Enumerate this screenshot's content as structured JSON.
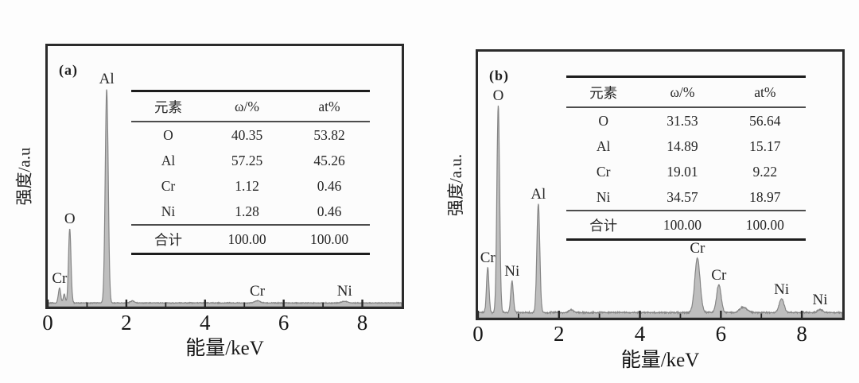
{
  "figure": {
    "panels": [
      {
        "tag": "(a)",
        "xlabel": "能量/keV",
        "ylabel": "强度/a.u",
        "xtick_labels": [
          "0",
          "2",
          "4",
          "6",
          "8"
        ],
        "table": {
          "columns": [
            "元素",
            "ω/%",
            "at%"
          ],
          "rows": [
            [
              "O",
              "40.35",
              "53.82"
            ],
            [
              "Al",
              "57.25",
              "45.26"
            ],
            [
              "Cr",
              "1.12",
              "0.46"
            ],
            [
              "Ni",
              "1.28",
              "0.46"
            ],
            [
              "合计",
              "100.00",
              "100.00"
            ]
          ]
        }
      },
      {
        "tag": "(b)",
        "xlabel": "能量/keV",
        "ylabel": "强度/a.u.",
        "xtick_labels": [
          "0",
          "2",
          "4",
          "6",
          "8"
        ],
        "table": {
          "columns": [
            "元素",
            "ω/%",
            "at%"
          ],
          "rows": [
            [
              "O",
              "31.53",
              "56.64"
            ],
            [
              "Al",
              "14.89",
              "15.17"
            ],
            [
              "Cr",
              "19.01",
              "9.22"
            ],
            [
              "Ni",
              "34.57",
              "18.97"
            ],
            [
              "合计",
              "100.00",
              "100.00"
            ]
          ]
        }
      }
    ]
  },
  "colors": {
    "peak_fill": "#b9b9b9",
    "peak_stroke": "#858585",
    "frame": "#2b2b2b",
    "text": "#1e1e1e"
  },
  "chart_data": [
    {
      "type": "area",
      "title": "(a) EDS spectrum",
      "xlabel": "能量/keV",
      "ylabel": "强度/a.u",
      "xlim": [
        0,
        9
      ],
      "xticks_major": [
        0,
        2,
        4,
        6,
        8
      ],
      "xticks_minor": [
        1,
        3,
        5,
        7
      ],
      "grid": false,
      "baseline": 0.008,
      "noise": 0.004,
      "peaks": [
        {
          "element": "Cr",
          "kev": 0.3,
          "rel_height": 0.057,
          "sigma": 0.03,
          "label": true
        },
        {
          "element": "",
          "kev": 0.42,
          "rel_height": 0.034,
          "sigma": 0.025,
          "label": false
        },
        {
          "element": "O",
          "kev": 0.56,
          "rel_height": 0.285,
          "sigma": 0.032,
          "label": true
        },
        {
          "element": "Al",
          "kev": 1.5,
          "rel_height": 0.82,
          "sigma": 0.038,
          "label": true
        },
        {
          "element": "",
          "kev": 2.15,
          "rel_height": 0.008,
          "sigma": 0.05,
          "label": false
        },
        {
          "element": "Cr",
          "kev": 5.33,
          "rel_height": 0.008,
          "sigma": 0.07,
          "label": true
        },
        {
          "element": "Ni",
          "kev": 7.55,
          "rel_height": 0.006,
          "sigma": 0.07,
          "label": true
        }
      ]
    },
    {
      "type": "area",
      "title": "(b) EDS spectrum",
      "xlabel": "能量/keV",
      "ylabel": "强度/a.u.",
      "xlim": [
        0,
        9
      ],
      "xticks_major": [
        0,
        2,
        4,
        6,
        8
      ],
      "xticks_minor": [
        1,
        3,
        5,
        7
      ],
      "grid": false,
      "baseline": 0.012,
      "noise": 0.007,
      "peaks": [
        {
          "element": "Cr",
          "kev": 0.24,
          "rel_height": 0.17,
          "sigma": 0.03,
          "label": true
        },
        {
          "element": "O",
          "kev": 0.5,
          "rel_height": 0.78,
          "sigma": 0.034,
          "label": true
        },
        {
          "element": "Ni",
          "kev": 0.84,
          "rel_height": 0.118,
          "sigma": 0.032,
          "label": true
        },
        {
          "element": "Al",
          "kev": 1.49,
          "rel_height": 0.41,
          "sigma": 0.036,
          "label": true
        },
        {
          "element": "",
          "kev": 2.3,
          "rel_height": 0.01,
          "sigma": 0.06,
          "label": false
        },
        {
          "element": "Cr",
          "kev": 5.42,
          "rel_height": 0.205,
          "sigma": 0.065,
          "label": true
        },
        {
          "element": "Cr",
          "kev": 5.95,
          "rel_height": 0.105,
          "sigma": 0.055,
          "label": true
        },
        {
          "element": "",
          "kev": 6.55,
          "rel_height": 0.02,
          "sigma": 0.09,
          "label": false
        },
        {
          "element": "Ni",
          "kev": 7.5,
          "rel_height": 0.052,
          "sigma": 0.06,
          "label": true
        },
        {
          "element": "Ni",
          "kev": 8.45,
          "rel_height": 0.012,
          "sigma": 0.06,
          "label": true
        }
      ]
    }
  ]
}
